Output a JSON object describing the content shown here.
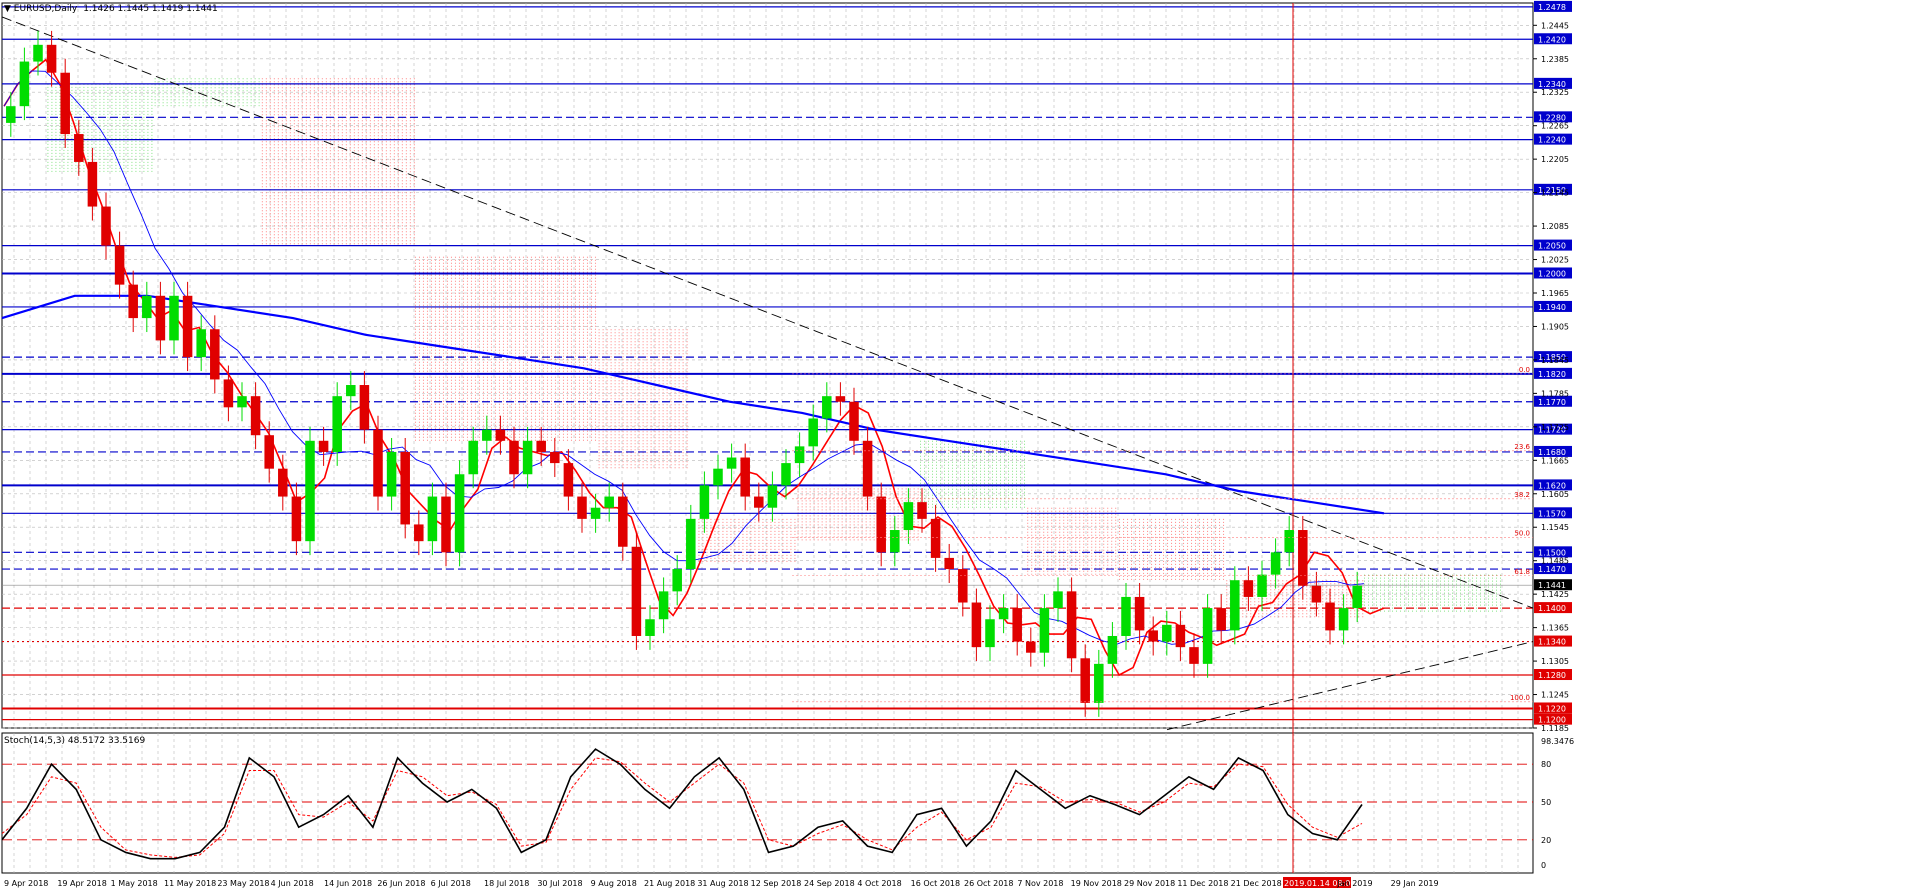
{
  "header": {
    "symbol": "EURUSD,Daily",
    "ohlc": "1.1426 1.1445 1.1419 1.1441"
  },
  "stoch_header": {
    "label": "Stoch(14,5,3) 48.5172 33.5169"
  },
  "colors": {
    "bull": "#00dd00",
    "bear": "#e00000",
    "ma_fast": "#ff0000",
    "ma_slow": "#0000ff",
    "grid": "#b8b8b8",
    "level_line": "#0000cc",
    "level_tag_bg": "#0000cc",
    "current_tag_bg": "#000000",
    "red_tag_bg": "#e00000",
    "kumo_bear": "#ff6666",
    "kumo_bull": "#66dd66",
    "stoch_main": "#000000",
    "stoch_signal": "#ff0000",
    "stoch_level": "#e00000",
    "cursor_line": "#e00000"
  },
  "chart_data": {
    "type": "candlestick",
    "instrument": "EURUSD",
    "timeframe": "Daily",
    "price_axis_ticks": [
      "1.2445",
      "1.2385",
      "1.2325",
      "1.2265",
      "1.2205",
      "1.2145",
      "1.2085",
      "1.2025",
      "1.1965",
      "1.1905",
      "1.1845",
      "1.1785",
      "1.1725",
      "1.1665",
      "1.1605",
      "1.1545",
      "1.1485",
      "1.1425",
      "1.1365",
      "1.1305",
      "1.1245",
      "1.1185"
    ],
    "price_range": [
      1.1185,
      1.2485
    ],
    "x_tick_labels": [
      "9 Apr 2018",
      "19 Apr 2018",
      "1 May 2018",
      "11 May 2018",
      "23 May 2018",
      "4 Jun 2018",
      "14 Jun 2018",
      "26 Jun 2018",
      "6 Jul 2018",
      "18 Jul 2018",
      "30 Jul 2018",
      "9 Aug 2018",
      "21 Aug 2018",
      "31 Aug 2018",
      "12 Sep 2018",
      "24 Sep 2018",
      "4 Oct 2018",
      "16 Oct 2018",
      "26 Oct 2018",
      "7 Nov 2018",
      "19 Nov 2018",
      "29 Nov 2018",
      "11 Dec 2018",
      "21 Dec 2018",
      "2019.01.14 08:00",
      "Jan 2019",
      "29 Jan 2019"
    ],
    "highlighted_x_label_index": 24,
    "horizontal_levels": [
      {
        "label": "1.2478",
        "price": 1.2478,
        "style": "solid"
      },
      {
        "label": "1.2420",
        "price": 1.242,
        "style": "solid"
      },
      {
        "label": "1.2340",
        "price": 1.234,
        "style": "solid"
      },
      {
        "label": "1.2280",
        "price": 1.228,
        "style": "dashed"
      },
      {
        "label": "1.2240",
        "price": 1.224,
        "style": "solid"
      },
      {
        "label": "1.2150",
        "price": 1.215,
        "style": "solid"
      },
      {
        "label": "1.2050",
        "price": 1.205,
        "style": "solid"
      },
      {
        "label": "1.2000",
        "price": 1.2,
        "style": "solid-thick"
      },
      {
        "label": "1.1940",
        "price": 1.194,
        "style": "solid"
      },
      {
        "label": "1.1850",
        "price": 1.185,
        "style": "dashed"
      },
      {
        "label": "1.1820",
        "price": 1.182,
        "style": "solid-thick"
      },
      {
        "label": "1.1770",
        "price": 1.177,
        "style": "dashed"
      },
      {
        "label": "1.1720",
        "price": 1.172,
        "style": "solid"
      },
      {
        "label": "1.1680",
        "price": 1.168,
        "style": "dashed"
      },
      {
        "label": "1.1620",
        "price": 1.162,
        "style": "solid-thick"
      },
      {
        "label": "1.1570",
        "price": 1.157,
        "style": "solid"
      },
      {
        "label": "1.1500",
        "price": 1.15,
        "style": "dashed"
      },
      {
        "label": "1.1470",
        "price": 1.147,
        "style": "dashed"
      },
      {
        "label": "1.1400",
        "price": 1.14,
        "style": "red-dashed"
      },
      {
        "label": "1.1340",
        "price": 1.134,
        "style": "red-dotted"
      },
      {
        "label": "1.1280",
        "price": 1.128,
        "style": "red-solid"
      },
      {
        "label": "1.1220",
        "price": 1.122,
        "style": "red-thick"
      },
      {
        "label": "1.1200",
        "price": 1.12,
        "style": "red-solid"
      }
    ],
    "current_price": {
      "label": "1.1441",
      "price": 1.1441
    },
    "fibonacci_labels": [
      {
        "label": "0.0",
        "price": 1.182
      },
      {
        "label": "23.6",
        "price": 1.1682
      },
      {
        "label": "38.2",
        "price": 1.1596
      },
      {
        "label": "50.0",
        "price": 1.1527
      },
      {
        "label": "61.8",
        "price": 1.1458
      },
      {
        "label": "100.0",
        "price": 1.1232
      }
    ],
    "close_path": [
      1.23,
      1.238,
      1.241,
      1.236,
      1.225,
      1.22,
      1.212,
      1.205,
      1.198,
      1.192,
      1.196,
      1.188,
      1.196,
      1.185,
      1.19,
      1.181,
      1.176,
      1.178,
      1.171,
      1.165,
      1.16,
      1.152,
      1.17,
      1.168,
      1.178,
      1.18,
      1.172,
      1.16,
      1.168,
      1.155,
      1.152,
      1.16,
      1.15,
      1.164,
      1.17,
      1.172,
      1.17,
      1.164,
      1.17,
      1.168,
      1.166,
      1.16,
      1.156,
      1.158,
      1.16,
      1.151,
      1.135,
      1.138,
      1.143,
      1.147,
      1.156,
      1.162,
      1.165,
      1.167,
      1.16,
      1.158,
      1.162,
      1.166,
      1.169,
      1.174,
      1.178,
      1.177,
      1.17,
      1.16,
      1.15,
      1.154,
      1.159,
      1.156,
      1.149,
      1.147,
      1.141,
      1.133,
      1.138,
      1.14,
      1.134,
      1.132,
      1.14,
      1.143,
      1.131,
      1.123,
      1.13,
      1.135,
      1.142,
      1.136,
      1.134,
      1.137,
      1.133,
      1.13,
      1.14,
      1.136,
      1.145,
      1.142,
      1.146,
      1.15,
      1.154,
      1.144,
      1.141,
      1.136,
      1.14,
      1.144
    ],
    "ma_slow_path": [
      1.192,
      1.196,
      1.196,
      1.194,
      1.192,
      1.189,
      1.187,
      1.185,
      1.183,
      1.18,
      1.177,
      1.175,
      1.172,
      1.17,
      1.168,
      1.166,
      1.164,
      1.161,
      1.159,
      1.157
    ],
    "stochastic": {
      "levels": [
        80,
        50,
        20
      ],
      "axis_ticks": [
        "98.3476",
        "80",
        "50",
        "20",
        "0"
      ],
      "main": [
        20,
        45,
        80,
        60,
        20,
        10,
        5,
        5,
        10,
        30,
        85,
        70,
        30,
        40,
        55,
        30,
        85,
        65,
        50,
        60,
        45,
        10,
        20,
        70,
        92,
        80,
        60,
        45,
        70,
        85,
        60,
        10,
        15,
        30,
        35,
        15,
        10,
        40,
        45,
        15,
        35,
        75,
        60,
        45,
        55,
        48,
        40,
        55,
        70,
        60,
        85,
        75,
        40,
        25,
        20,
        48
      ],
      "signal": [
        25,
        40,
        70,
        65,
        30,
        12,
        8,
        6,
        8,
        25,
        75,
        75,
        40,
        38,
        50,
        35,
        75,
        70,
        55,
        58,
        48,
        15,
        18,
        60,
        85,
        82,
        65,
        50,
        65,
        80,
        65,
        20,
        15,
        25,
        32,
        20,
        12,
        30,
        42,
        20,
        30,
        65,
        62,
        50,
        52,
        50,
        42,
        50,
        65,
        62,
        80,
        78,
        48,
        30,
        22,
        33
      ]
    }
  }
}
